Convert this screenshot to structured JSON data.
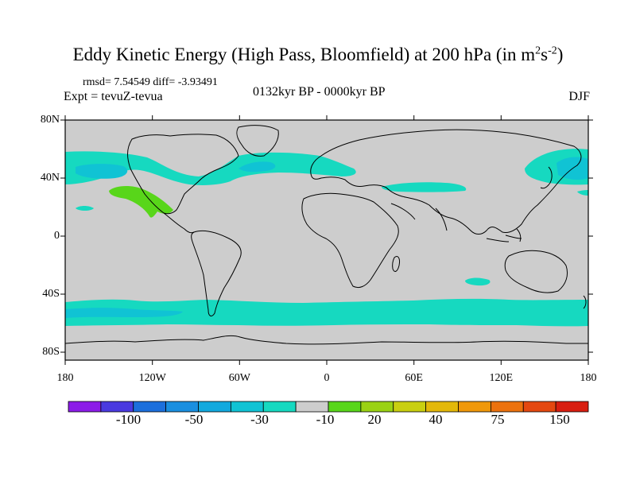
{
  "title": {
    "main": "Eddy Kinetic Energy (High Pass, Bloomfield) at 200 hPa (in m",
    "unit_m_exp": "2",
    "unit_s": "s",
    "unit_s_exp": "-2",
    "unit_close": ")"
  },
  "stats": "rmsd= 7.54549 diff= -3.93491",
  "experiment": "Expt = tevuZ-tevua",
  "period": "0132kyr BP - 0000kyr BP",
  "season": "DJF",
  "latitude_labels": [
    "80N",
    "40N",
    "0",
    "40S",
    "80S"
  ],
  "longitude_labels": [
    "180",
    "120W",
    "60W",
    "0",
    "60E",
    "120E",
    "180"
  ],
  "colorbar": {
    "labels": [
      "-100",
      "-50",
      "-30",
      "-10",
      "20",
      "40",
      "75",
      "150"
    ],
    "colors": [
      "#8c1ce8",
      "#4a3ae0",
      "#1c6fdc",
      "#1a8fe0",
      "#12a9de",
      "#10c3d4",
      "#16d9c0",
      "#cdcdcd",
      "#58d61a",
      "#9ad214",
      "#c9cf10",
      "#e3b80a",
      "#f0980a",
      "#ec720e",
      "#e44810",
      "#d81e10"
    ]
  },
  "colors": {
    "land_ocean_neutral": "#cdcdcd",
    "cyan_band": "#16d9c0",
    "cyan_light": "#10c3d4",
    "green_positive": "#58d61a"
  }
}
